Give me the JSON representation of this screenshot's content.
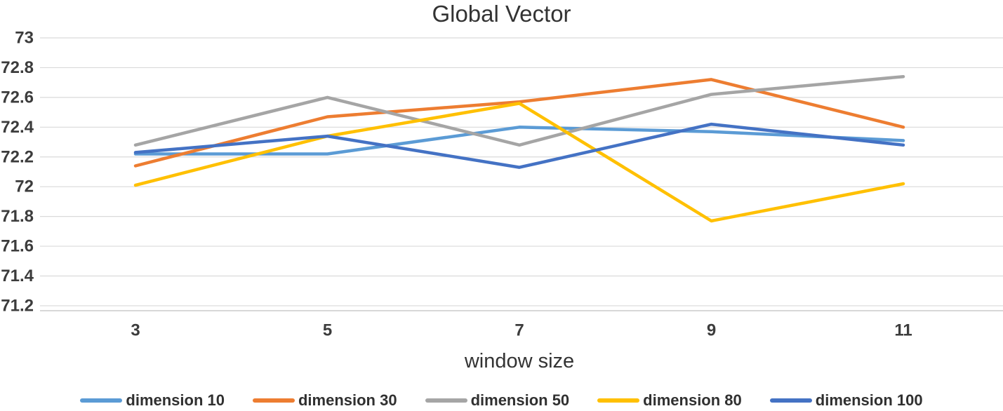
{
  "chart_data": {
    "type": "line",
    "title": "Global Vector",
    "xlabel": "window size",
    "ylabel": "",
    "categories": [
      "3",
      "5",
      "7",
      "9",
      "11"
    ],
    "x_values": [
      3,
      5,
      7,
      9,
      11
    ],
    "series": [
      {
        "name": "dimension 10",
        "color": "#5B9BD5",
        "values": [
          72.22,
          72.22,
          72.4,
          72.37,
          72.31
        ]
      },
      {
        "name": "dimension 30",
        "color": "#ED7D31",
        "values": [
          72.14,
          72.47,
          72.57,
          72.72,
          72.4
        ]
      },
      {
        "name": "dimension 50",
        "color": "#A5A5A5",
        "values": [
          72.28,
          72.6,
          72.28,
          72.62,
          72.74
        ]
      },
      {
        "name": "dimension 80",
        "color": "#FFC000",
        "values": [
          72.01,
          72.34,
          72.56,
          71.77,
          72.02
        ]
      },
      {
        "name": "dimension 100",
        "color": "#4472C4",
        "values": [
          72.23,
          72.34,
          72.13,
          72.42,
          72.28
        ]
      }
    ],
    "ylim": [
      71.2,
      73
    ],
    "ytick_step": 0.2,
    "yticks": [
      "73",
      "72.8",
      "72.6",
      "72.4",
      "72.2",
      "72",
      "71.8",
      "71.6",
      "71.4",
      "71.2"
    ],
    "grid": true,
    "legend_position": "bottom",
    "colors": {
      "grid": "#DADADA",
      "axis_line": "#BFBFBF",
      "tick_text": "#3C3C3C"
    }
  }
}
